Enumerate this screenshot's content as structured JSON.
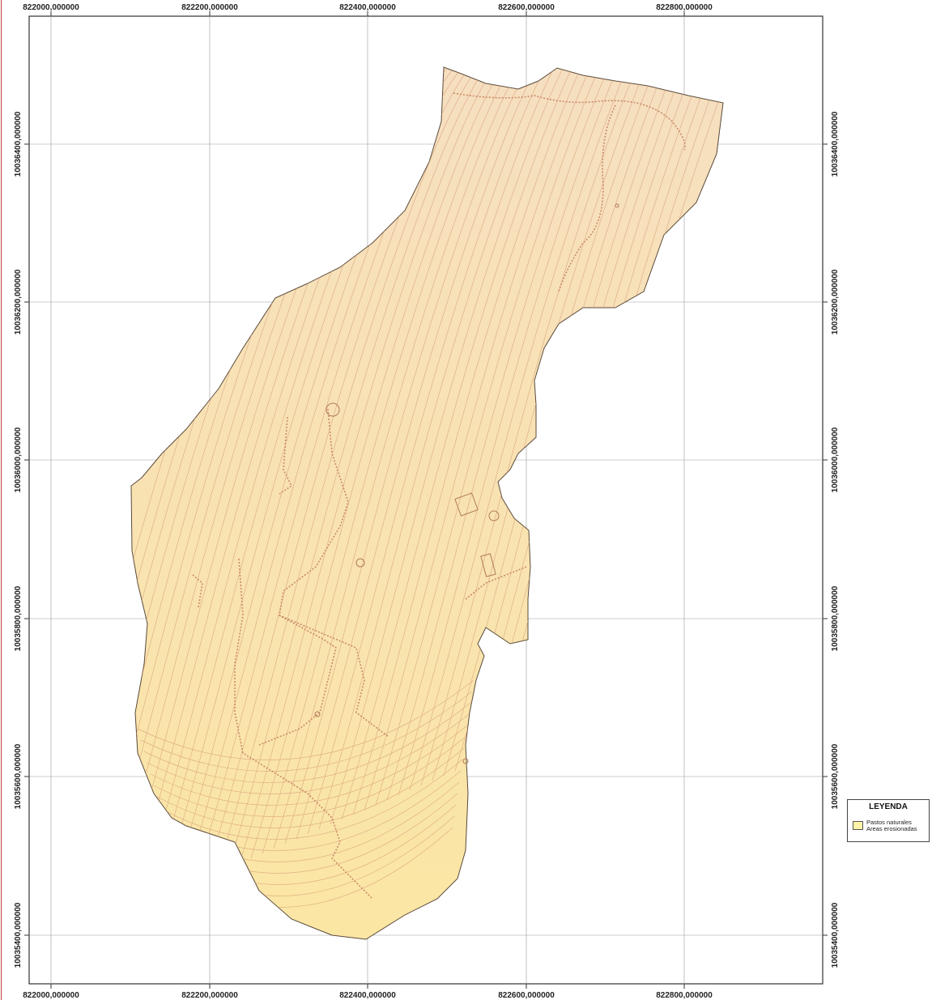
{
  "map": {
    "x_ticks": [
      "822000,000000",
      "822200,000000",
      "822400,000000",
      "822600,000000",
      "822800,000000"
    ],
    "y_ticks": [
      "10036400,000000",
      "10036200,000000",
      "10036000,000000",
      "10035800,000000",
      "10035600,000000",
      "10035400,000000"
    ],
    "area_fill_top": "#f6dfc0",
    "area_fill_bottom": "#fbe6a4",
    "contour_color": "#d9a27c",
    "path_color": "#c98a6a"
  },
  "legend": {
    "title": "LEYENDA",
    "items": [
      "Pastos naturales",
      "Areas erosionadas"
    ],
    "swatch_color": "#fdf4a8"
  }
}
